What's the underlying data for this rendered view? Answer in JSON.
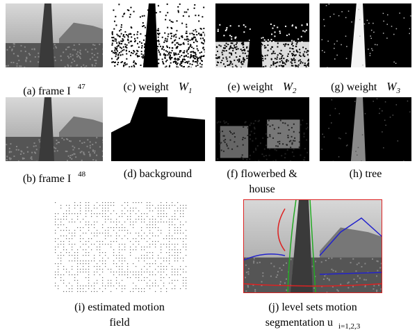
{
  "panels": [
    {
      "line1": "(a) frame I",
      "sup": "47"
    },
    {
      "line1": "(c) weight",
      "var": "W",
      "sub": "1"
    },
    {
      "line1": "(e) weight",
      "var": "W",
      "sub": "2"
    },
    {
      "line1": "(g) weight",
      "var": "W",
      "sub": "3"
    },
    {
      "line1": "(b) frame I",
      "sup": "48"
    },
    {
      "line1": "(d) background"
    },
    {
      "line1": "(f) flowerbed &",
      "line2": "house"
    },
    {
      "line1": "(h) tree"
    },
    {
      "line1": "(i) estimated motion",
      "line2": "field"
    },
    {
      "line1": "(j) level sets motion",
      "line2": "segmentation u",
      "sub": "i=1,2,3"
    }
  ]
}
